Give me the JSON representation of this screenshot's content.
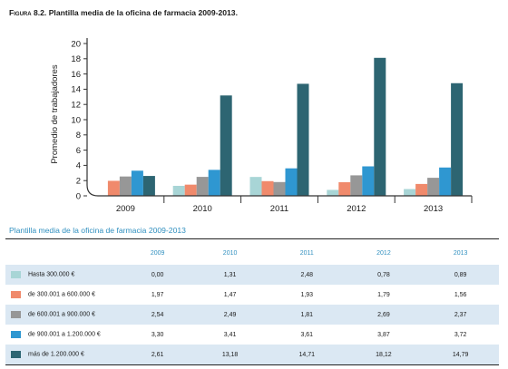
{
  "figure": {
    "label": "Figura 8.2.",
    "title": "Plantilla media de la oficina de farmacia 2009-2013."
  },
  "colors": [
    "#a8d5d6",
    "#f08a6c",
    "#979797",
    "#2f97d1",
    "#2d6572"
  ],
  "chart_data": {
    "type": "bar",
    "title": "Plantilla media de la oficina de farmacia 2009-2013.",
    "xlabel": "",
    "ylabel": "Promedio de trabajadores",
    "ylim": [
      0,
      20
    ],
    "yticks": [
      0,
      2,
      4,
      6,
      8,
      10,
      12,
      14,
      16,
      18,
      20
    ],
    "grid": false,
    "legend": "table-below",
    "categories": [
      "2009",
      "2010",
      "2011",
      "2012",
      "2013"
    ],
    "series": [
      {
        "name": "Hasta 300.000 €",
        "values": [
          0.0,
          1.31,
          2.48,
          0.78,
          0.89
        ]
      },
      {
        "name": "de 300.001 a 600.000 €",
        "values": [
          1.97,
          1.47,
          1.93,
          1.79,
          1.56
        ]
      },
      {
        "name": "de 600.001 a 900.000 €",
        "values": [
          2.54,
          2.49,
          1.81,
          2.69,
          2.37
        ]
      },
      {
        "name": "de 900.001 a 1.200.000 €",
        "values": [
          3.3,
          3.41,
          3.61,
          3.87,
          3.72
        ]
      },
      {
        "name": "más de 1.200.000 €",
        "values": [
          2.61,
          13.18,
          14.71,
          18.12,
          14.79
        ]
      }
    ]
  },
  "table": {
    "title": "Plantilla media de la oficina de farmacia 2009-2013",
    "headers": [
      "2009",
      "2010",
      "2011",
      "2012",
      "2013"
    ],
    "rows": [
      {
        "label": "Hasta 300.000 €",
        "cells": [
          "0,00",
          "1,31",
          "2,48",
          "0,78",
          "0,89"
        ]
      },
      {
        "label": "de 300.001 a 600.000 €",
        "cells": [
          "1,97",
          "1,47",
          "1,93",
          "1,79",
          "1,56"
        ]
      },
      {
        "label": "de 600.001 a 900.000 €",
        "cells": [
          "2,54",
          "2,49",
          "1,81",
          "2,69",
          "2,37"
        ]
      },
      {
        "label": "de 900.001 a 1.200.000 €",
        "cells": [
          "3,30",
          "3,41",
          "3,61",
          "3,87",
          "3,72"
        ]
      },
      {
        "label": "más de 1.200.000 €",
        "cells": [
          "2,61",
          "13,18",
          "14,71",
          "18,12",
          "14,79"
        ]
      }
    ]
  }
}
